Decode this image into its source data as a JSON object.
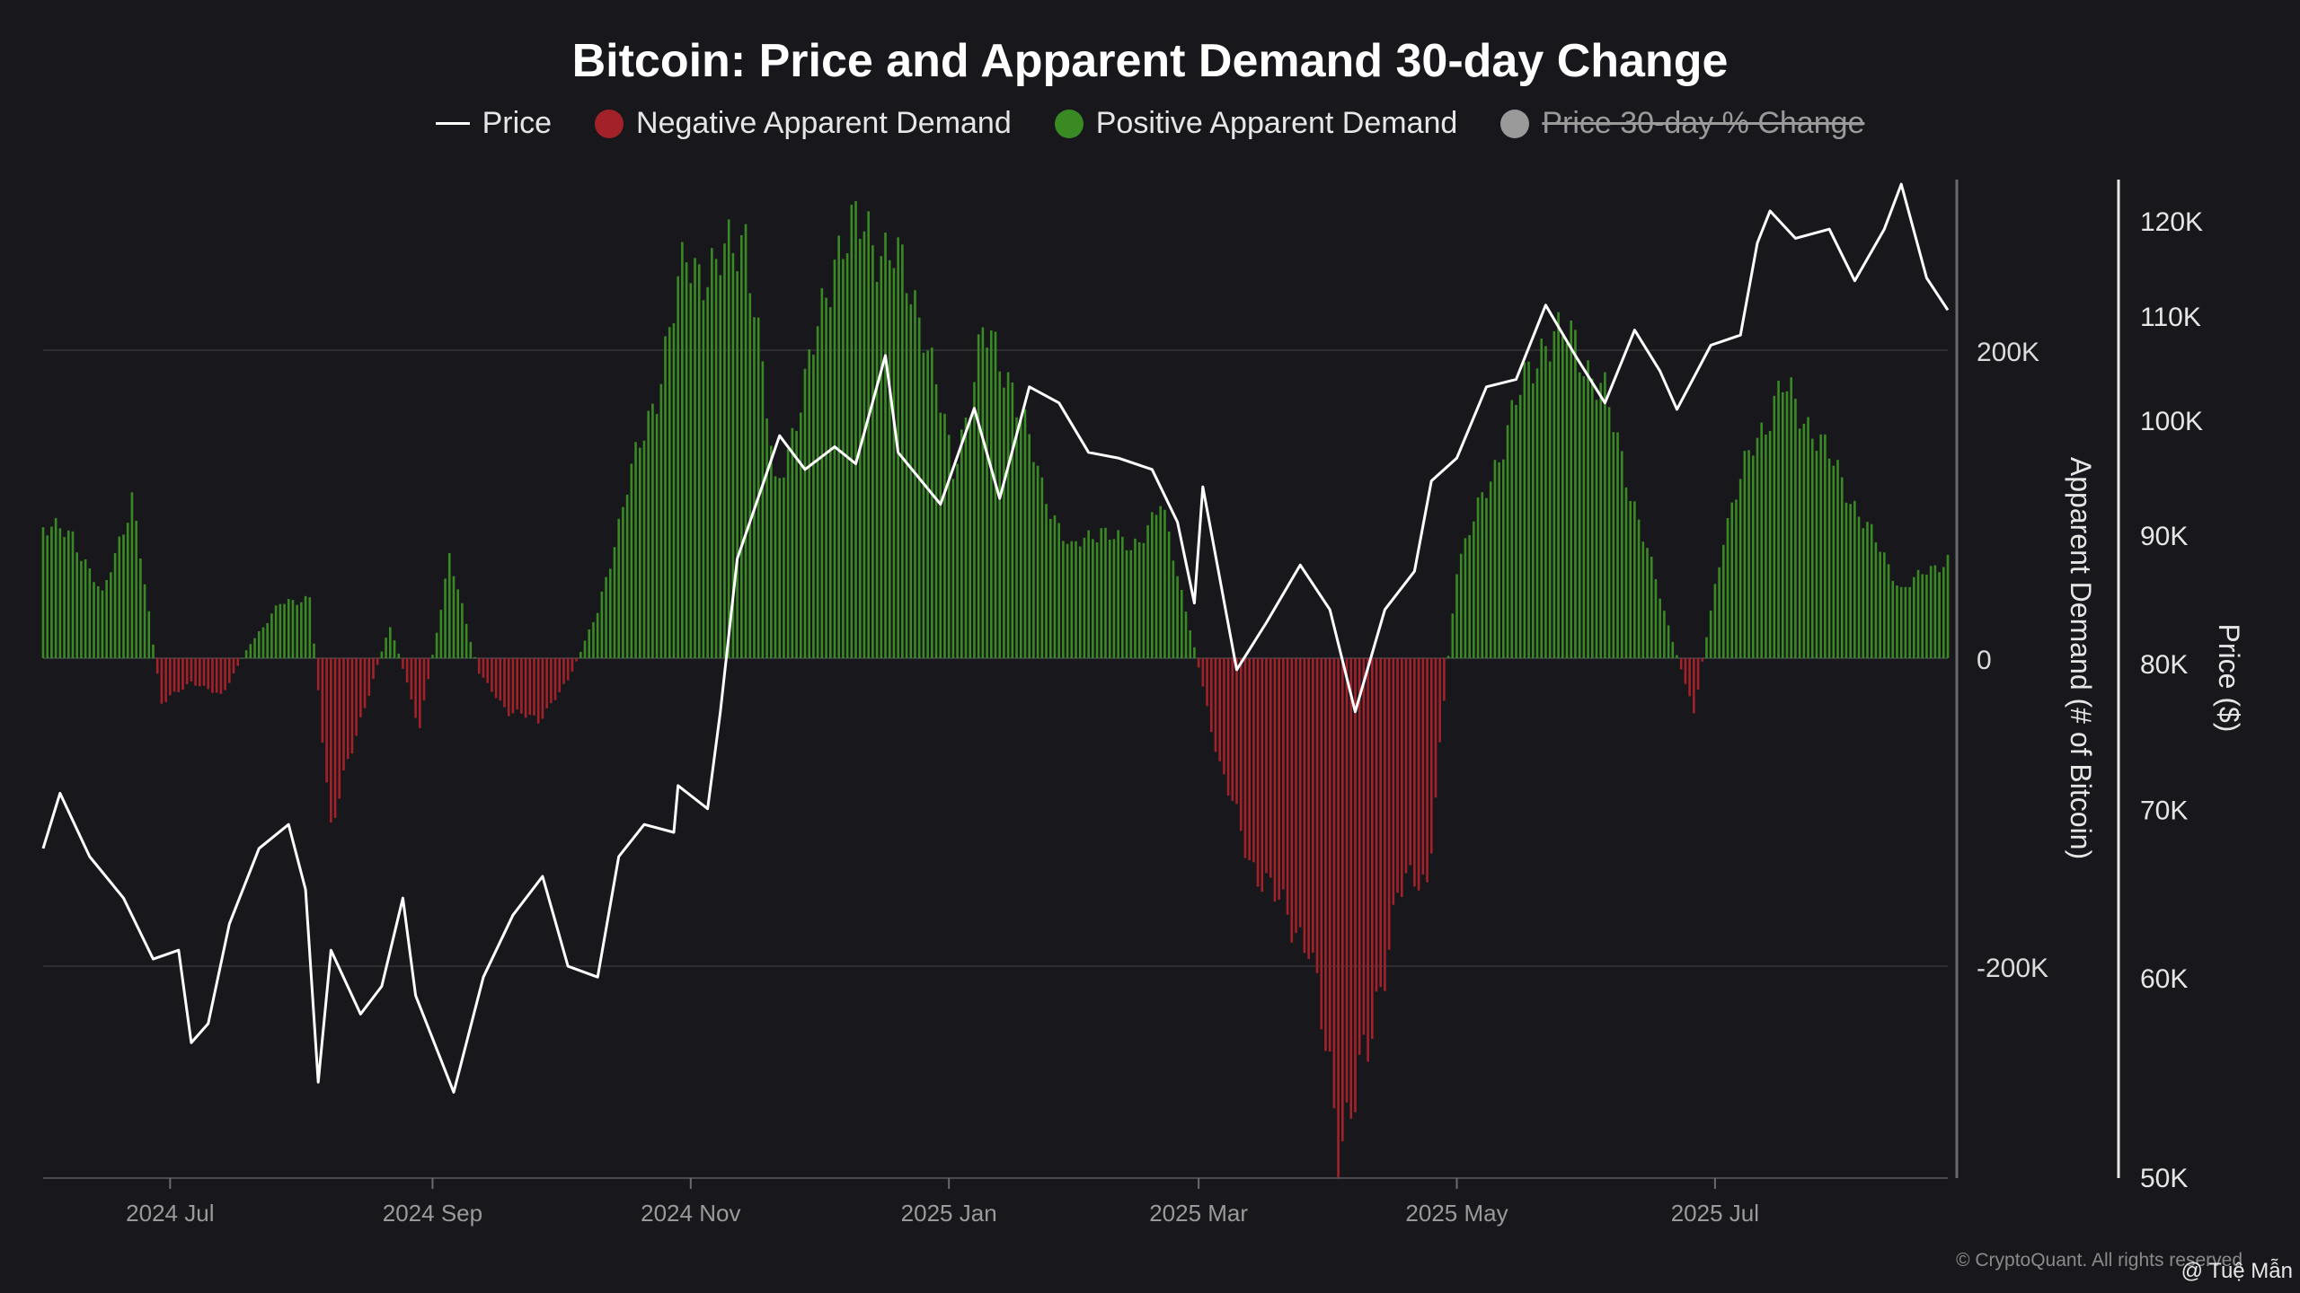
{
  "title": "Bitcoin: Price and Apparent Demand 30-day Change",
  "legend": [
    {
      "label": "Price",
      "type": "line",
      "color": "#ffffff",
      "hidden": false
    },
    {
      "label": "Negative Apparent Demand",
      "type": "dot",
      "color": "#a3222a",
      "hidden": false
    },
    {
      "label": "Positive Apparent Demand",
      "type": "dot",
      "color": "#3a8a24",
      "hidden": false
    },
    {
      "label": "Price 30-day % Change",
      "type": "dot",
      "color": "#9a9a9a",
      "hidden": true
    }
  ],
  "footer": {
    "copyright": "© CryptoQuant. All rights reserved",
    "handle": "@ Tuệ Mẫn"
  },
  "colors": {
    "background": "#18181c",
    "positive": "#3a8a24",
    "negative": "#a3222a",
    "price": "#ffffff",
    "axis": "#9a9a9a",
    "grid": "#2c2c31"
  },
  "chart_data": {
    "type": "bar",
    "title": "Bitcoin: Price and Apparent Demand 30-day Change",
    "x_start": "2024-06-01",
    "x_end": "2025-08-25",
    "x_ticks": [
      {
        "date": "2024-07-01",
        "label": "2024 Jul"
      },
      {
        "date": "2024-09-01",
        "label": "2024 Sep"
      },
      {
        "date": "2024-11-01",
        "label": "2024 Nov"
      },
      {
        "date": "2025-01-01",
        "label": "2025 Jan"
      },
      {
        "date": "2025-03-01",
        "label": "2025 Mar"
      },
      {
        "date": "2025-05-01",
        "label": "2025 May"
      },
      {
        "date": "2025-07-01",
        "label": "2025 Jul"
      }
    ],
    "y_left": {
      "label": "Apparent Demand (# of Bitcoin)",
      "ticks": [
        {
          "value": 200000,
          "label": "200K"
        },
        {
          "value": 0,
          "label": "0"
        },
        {
          "value": -200000,
          "label": "-200K"
        }
      ],
      "range": [
        -340000,
        310000
      ]
    },
    "y_right": {
      "label": "Price ($)",
      "scale": "log",
      "ticks": [
        {
          "value": 50000,
          "label": "50K"
        },
        {
          "value": 60000,
          "label": "60K"
        },
        {
          "value": 70000,
          "label": "70K"
        },
        {
          "value": 80000,
          "label": "80K"
        },
        {
          "value": 90000,
          "label": "90K"
        },
        {
          "value": 100000,
          "label": "100K"
        },
        {
          "value": 110000,
          "label": "110K"
        },
        {
          "value": 120000,
          "label": "120K"
        }
      ],
      "range": [
        50000,
        125000
      ]
    },
    "grid": true,
    "legend_position": "top-center",
    "series": [
      {
        "name": "Apparent Demand",
        "type": "bar",
        "points": [
          [
            "2024-06-01",
            85000
          ],
          [
            "2024-06-08",
            80000
          ],
          [
            "2024-06-15",
            40000
          ],
          [
            "2024-06-22",
            105000
          ],
          [
            "2024-06-29",
            -30000
          ],
          [
            "2024-07-06",
            -15000
          ],
          [
            "2024-07-13",
            -25000
          ],
          [
            "2024-07-20",
            10000
          ],
          [
            "2024-07-27",
            35000
          ],
          [
            "2024-08-03",
            40000
          ],
          [
            "2024-08-08",
            -110000
          ],
          [
            "2024-08-15",
            -40000
          ],
          [
            "2024-08-22",
            22000
          ],
          [
            "2024-08-29",
            -45000
          ],
          [
            "2024-09-05",
            65000
          ],
          [
            "2024-09-12",
            -10000
          ],
          [
            "2024-09-19",
            -35000
          ],
          [
            "2024-09-26",
            -40000
          ],
          [
            "2024-10-03",
            -15000
          ],
          [
            "2024-10-10",
            30000
          ],
          [
            "2024-10-17",
            110000
          ],
          [
            "2024-10-24",
            175000
          ],
          [
            "2024-10-31",
            260000
          ],
          [
            "2024-11-07",
            250000
          ],
          [
            "2024-11-14",
            280000
          ],
          [
            "2024-11-21",
            110000
          ],
          [
            "2024-11-28",
            175000
          ],
          [
            "2024-12-05",
            265000
          ],
          [
            "2024-12-12",
            280000
          ],
          [
            "2024-12-19",
            260000
          ],
          [
            "2024-12-26",
            220000
          ],
          [
            "2025-01-02",
            120000
          ],
          [
            "2025-01-09",
            210000
          ],
          [
            "2025-01-16",
            180000
          ],
          [
            "2025-01-23",
            110000
          ],
          [
            "2025-01-30",
            70000
          ],
          [
            "2025-02-06",
            85000
          ],
          [
            "2025-02-13",
            70000
          ],
          [
            "2025-02-20",
            100000
          ],
          [
            "2025-02-27",
            20000
          ],
          [
            "2025-03-06",
            -70000
          ],
          [
            "2025-03-13",
            -130000
          ],
          [
            "2025-03-20",
            -160000
          ],
          [
            "2025-03-27",
            -185000
          ],
          [
            "2025-04-03",
            -310000
          ],
          [
            "2025-04-10",
            -260000
          ],
          [
            "2025-04-17",
            -150000
          ],
          [
            "2025-04-24",
            -145000
          ],
          [
            "2025-05-01",
            60000
          ],
          [
            "2025-05-08",
            110000
          ],
          [
            "2025-05-15",
            165000
          ],
          [
            "2025-05-22",
            210000
          ],
          [
            "2025-05-29",
            205000
          ],
          [
            "2025-06-05",
            170000
          ],
          [
            "2025-06-12",
            100000
          ],
          [
            "2025-06-19",
            30000
          ],
          [
            "2025-06-26",
            -35000
          ],
          [
            "2025-07-03",
            80000
          ],
          [
            "2025-07-10",
            140000
          ],
          [
            "2025-07-17",
            175000
          ],
          [
            "2025-07-24",
            150000
          ],
          [
            "2025-07-31",
            115000
          ],
          [
            "2025-08-07",
            80000
          ],
          [
            "2025-08-14",
            45000
          ],
          [
            "2025-08-25",
            65000
          ]
        ]
      },
      {
        "name": "Price",
        "type": "line",
        "points": [
          [
            "2024-06-01",
            67500
          ],
          [
            "2024-06-05",
            71000
          ],
          [
            "2024-06-12",
            67000
          ],
          [
            "2024-06-20",
            64500
          ],
          [
            "2024-06-27",
            61000
          ],
          [
            "2024-07-03",
            61500
          ],
          [
            "2024-07-06",
            56500
          ],
          [
            "2024-07-10",
            57500
          ],
          [
            "2024-07-15",
            63000
          ],
          [
            "2024-07-22",
            67500
          ],
          [
            "2024-07-29",
            69000
          ],
          [
            "2024-08-02",
            65000
          ],
          [
            "2024-08-05",
            54500
          ],
          [
            "2024-08-08",
            61500
          ],
          [
            "2024-08-15",
            58000
          ],
          [
            "2024-08-20",
            59500
          ],
          [
            "2024-08-25",
            64500
          ],
          [
            "2024-08-28",
            59000
          ],
          [
            "2024-09-06",
            54000
          ],
          [
            "2024-09-13",
            60000
          ],
          [
            "2024-09-20",
            63500
          ],
          [
            "2024-09-27",
            65800
          ],
          [
            "2024-10-03",
            60600
          ],
          [
            "2024-10-10",
            60000
          ],
          [
            "2024-10-15",
            67000
          ],
          [
            "2024-10-21",
            69000
          ],
          [
            "2024-10-28",
            68500
          ],
          [
            "2024-10-29",
            71500
          ],
          [
            "2024-11-05",
            70000
          ],
          [
            "2024-11-08",
            76500
          ],
          [
            "2024-11-12",
            88000
          ],
          [
            "2024-11-22",
            98500
          ],
          [
            "2024-11-28",
            95500
          ],
          [
            "2024-12-05",
            97500
          ],
          [
            "2024-12-10",
            96000
          ],
          [
            "2024-12-17",
            106000
          ],
          [
            "2024-12-20",
            97000
          ],
          [
            "2024-12-30",
            92500
          ],
          [
            "2025-01-07",
            101000
          ],
          [
            "2025-01-13",
            93000
          ],
          [
            "2025-01-20",
            103000
          ],
          [
            "2025-01-27",
            101500
          ],
          [
            "2025-02-03",
            97000
          ],
          [
            "2025-02-10",
            96500
          ],
          [
            "2025-02-18",
            95500
          ],
          [
            "2025-02-24",
            91000
          ],
          [
            "2025-02-28",
            84500
          ],
          [
            "2025-03-02",
            94000
          ],
          [
            "2025-03-10",
            79500
          ],
          [
            "2025-03-17",
            83000
          ],
          [
            "2025-03-25",
            87500
          ],
          [
            "2025-04-01",
            84000
          ],
          [
            "2025-04-07",
            76500
          ],
          [
            "2025-04-14",
            84000
          ],
          [
            "2025-04-21",
            87000
          ],
          [
            "2025-04-25",
            94500
          ],
          [
            "2025-05-01",
            96500
          ],
          [
            "2025-05-08",
            103000
          ],
          [
            "2025-05-15",
            103700
          ],
          [
            "2025-05-22",
            111000
          ],
          [
            "2025-05-29",
            106000
          ],
          [
            "2025-06-05",
            101500
          ],
          [
            "2025-06-12",
            108500
          ],
          [
            "2025-06-18",
            104500
          ],
          [
            "2025-06-22",
            100900
          ],
          [
            "2025-06-30",
            107000
          ],
          [
            "2025-07-07",
            108000
          ],
          [
            "2025-07-11",
            117500
          ],
          [
            "2025-07-14",
            121000
          ],
          [
            "2025-07-20",
            118000
          ],
          [
            "2025-07-28",
            119000
          ],
          [
            "2025-08-03",
            113500
          ],
          [
            "2025-08-10",
            119000
          ],
          [
            "2025-08-14",
            124000
          ],
          [
            "2025-08-20",
            113800
          ],
          [
            "2025-08-25",
            110500
          ]
        ]
      }
    ]
  }
}
